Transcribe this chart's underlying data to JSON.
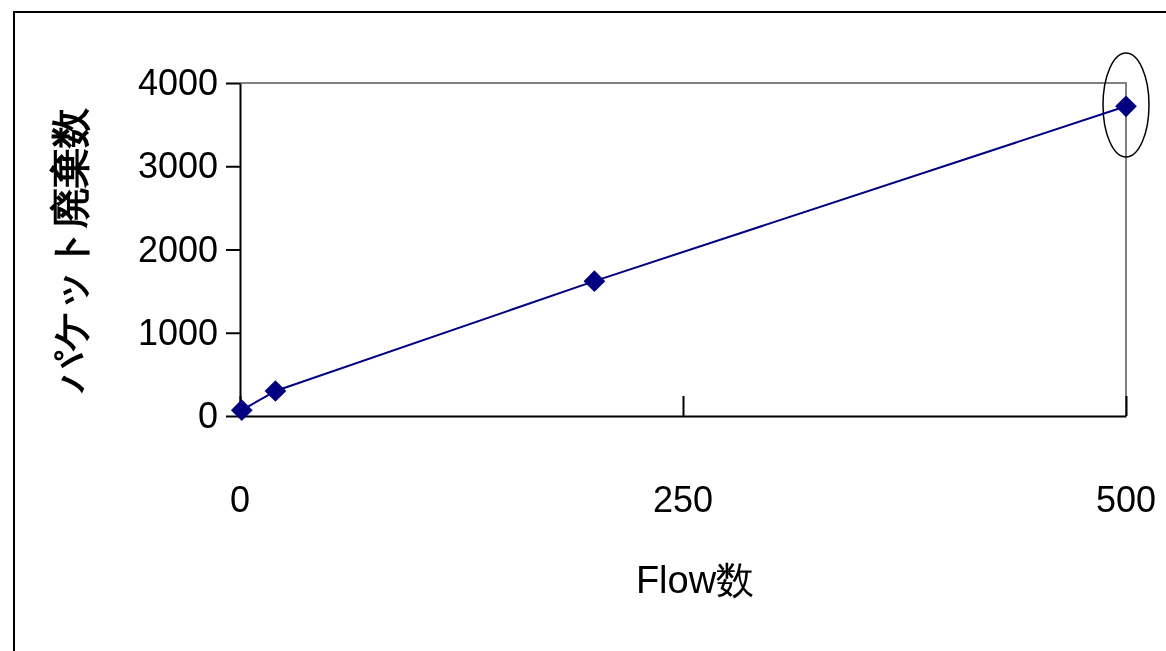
{
  "chart_data": {
    "type": "line",
    "xlabel": "Flow数",
    "ylabel": "パケット廃棄数",
    "x": [
      1,
      20,
      200,
      500
    ],
    "series": [
      {
        "color": "#000080",
        "values": [
          70,
          300,
          1620,
          3720
        ]
      }
    ],
    "xlim": [
      0,
      500
    ],
    "xticks": [
      0,
      250,
      500
    ],
    "ylim": [
      0,
      4000
    ],
    "yticks": [
      0,
      1000,
      2000,
      3000,
      4000
    ],
    "grid": false,
    "marker": "diamond",
    "line_style": "solid"
  }
}
